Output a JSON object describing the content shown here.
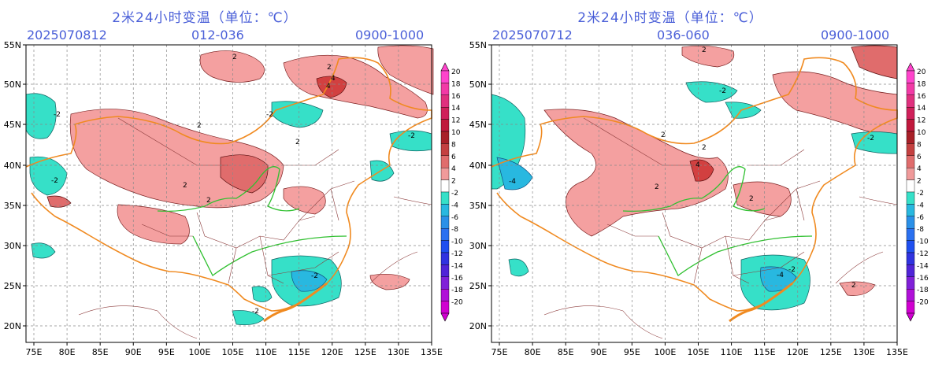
{
  "panels": [
    {
      "title": "2米24小时变温（单位：℃）",
      "init_date": "2025070812",
      "forecast_range": "012-036",
      "time_window": "0900-1000"
    },
    {
      "title": "2米24小时变温（单位：℃）",
      "init_date": "2025070712",
      "forecast_range": "036-060",
      "time_window": "0900-1000"
    }
  ],
  "map": {
    "lat_labels": [
      "55N",
      "50N",
      "45N",
      "40N",
      "35N",
      "30N",
      "25N",
      "20N"
    ],
    "lon_labels": [
      "75E",
      "80E",
      "85E",
      "90E",
      "95E",
      "100E",
      "105E",
      "110E",
      "115E",
      "120E",
      "125E",
      "130E",
      "135E"
    ]
  },
  "colorbar": {
    "labels": [
      "20",
      "18",
      "16",
      "14",
      "12",
      "10",
      "8",
      "6",
      "4",
      "2",
      "-2",
      "-4",
      "-6",
      "-8",
      "-10",
      "-12",
      "-14",
      "-16",
      "-18",
      "-20"
    ],
    "colors": [
      "#ff44cc",
      "#f23aa6",
      "#e0307e",
      "#d0205a",
      "#c0183c",
      "#a82028",
      "#c44040",
      "#e06c6c",
      "#f09a9a",
      "#ffffff",
      "#36e0c8",
      "#28b8e0",
      "#2a90e8",
      "#2a70f0",
      "#1f4ff0",
      "#3033e0",
      "#5024d8",
      "#8020d8",
      "#b010d8",
      "#d000d0"
    ]
  },
  "contour_labels": {
    "left": [
      "2",
      "2",
      "-2",
      "2",
      "4",
      "2",
      "-2",
      "-2",
      "2",
      "2",
      "-2",
      "4",
      "-2",
      "-2"
    ],
    "right": [
      "2",
      "-2",
      "2",
      "-4",
      "2",
      "2",
      "4",
      "-2",
      "-2",
      "-4",
      "2",
      "2"
    ]
  }
}
